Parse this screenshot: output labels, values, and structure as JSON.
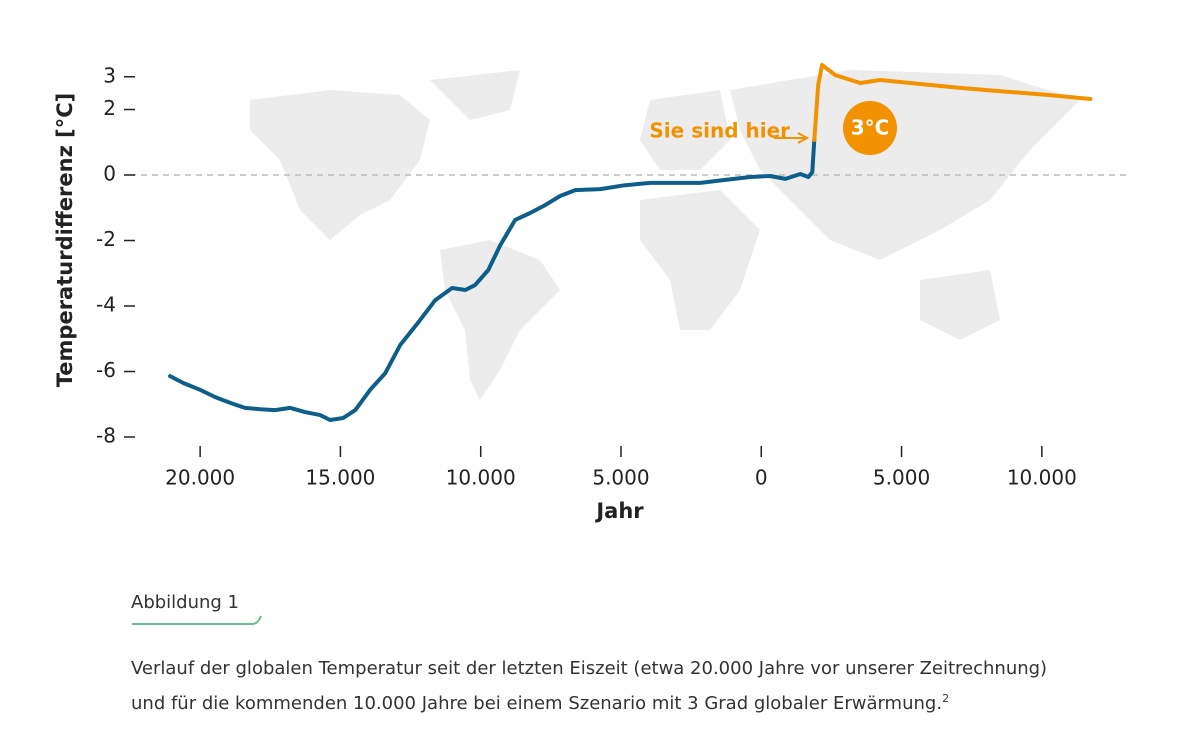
{
  "chart_data": {
    "type": "line",
    "y_label": "Temperaturdifferenz [°C]",
    "x_label": "Jahr",
    "xlim": [
      -22500,
      13000
    ],
    "ylim": [
      -8,
      3.5
    ],
    "xticks": [
      {
        "value": -20000,
        "label": "20.000"
      },
      {
        "value": -15000,
        "label": "15.000"
      },
      {
        "value": -10000,
        "label": "10.000"
      },
      {
        "value": -5000,
        "label": "5.000"
      },
      0,
      {
        "value": 5000,
        "label": "5.000"
      },
      {
        "value": 10000,
        "label": "10.000"
      }
    ],
    "yticks": [
      -8,
      -6,
      -4,
      -2,
      0,
      2,
      3
    ],
    "reference_line": 0,
    "series": [
      {
        "color": "#0d5f8a",
        "x": [
          -21070,
          -20600,
          -20000,
          -19470,
          -18930,
          -18400,
          -17860,
          -17330,
          -16790,
          -16260,
          -15720,
          -15370,
          -14900,
          -14470,
          -13940,
          -13400,
          -12870,
          -12160,
          -11620,
          -11020,
          -10550,
          -10200,
          -9730,
          -9300,
          -8770,
          -8240,
          -7700,
          -7170,
          -6630,
          -5740,
          -4850,
          -3960,
          -3070,
          -2170,
          -1280,
          -390,
          320,
          860,
          1390,
          1680,
          1820,
          1890
        ],
        "values": [
          -6.14,
          -6.35,
          -6.56,
          -6.78,
          -6.96,
          -7.11,
          -7.15,
          -7.18,
          -7.11,
          -7.24,
          -7.33,
          -7.48,
          -7.42,
          -7.18,
          -6.56,
          -6.05,
          -5.19,
          -4.43,
          -3.82,
          -3.45,
          -3.51,
          -3.36,
          -2.9,
          -2.14,
          -1.37,
          -1.16,
          -0.92,
          -0.64,
          -0.46,
          -0.43,
          -0.31,
          -0.24,
          -0.24,
          -0.24,
          -0.15,
          -0.06,
          -0.03,
          -0.12,
          0.03,
          -0.06,
          0.09,
          1.07
        ]
      },
      {
        "color": "#f39200",
        "x": [
          1890,
          2030,
          2170,
          2640,
          3530,
          4240,
          5670,
          7090,
          8520,
          10300,
          11730
        ],
        "values": [
          1.07,
          2.75,
          3.36,
          3.05,
          2.81,
          2.9,
          2.78,
          2.66,
          2.56,
          2.44,
          2.32
        ]
      }
    ],
    "annotations": [
      "Sie sind hier",
      "3°C"
    ]
  },
  "figure_label": "Abbildung 1",
  "caption": {
    "lines": [
      "Verlauf der globalen Temperatur seit der letzten Eiszeit (etwa 20.000 Jahre vor unserer Zeitrechnung)",
      "und für die kommenden 10.000 Jahre bei einem Szenario mit 3 Grad globaler Erwärmung."
    ],
    "footnote": "2"
  }
}
